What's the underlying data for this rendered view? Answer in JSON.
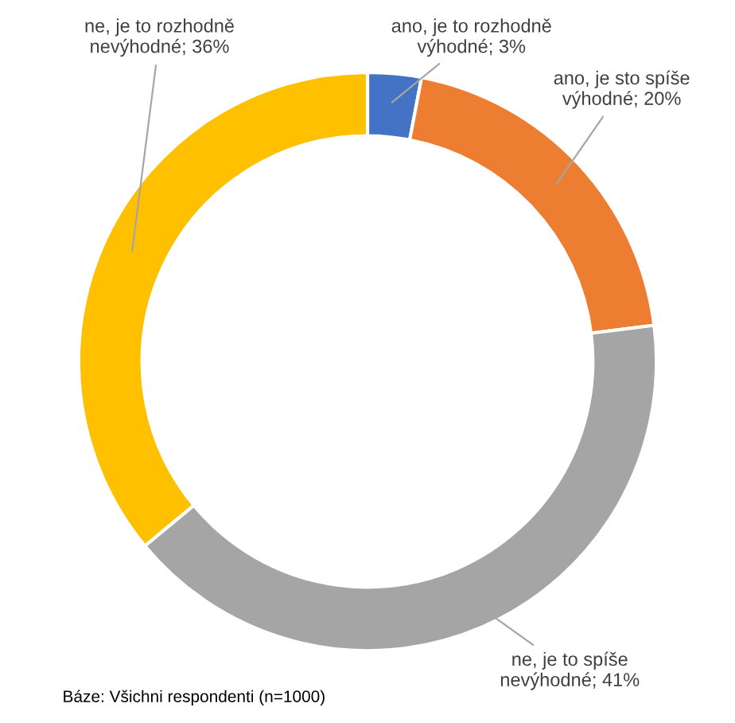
{
  "chart_data": {
    "type": "donut",
    "categories": [
      "ano, je to rozhodně výhodné",
      "ano, je sto spíše výhodné",
      "ne, je to spíše nevýhodné",
      "ne, je to rozhodně nevýhodné"
    ],
    "values": [
      3,
      20,
      41,
      36
    ],
    "value_labels": [
      "3%",
      "20%",
      "41%",
      "36%"
    ],
    "colors": [
      "#4472c4",
      "#ed7d31",
      "#a5a5a5",
      "#ffc000"
    ],
    "annotations": [
      "Báze: Všichni respondenti (n=1000)"
    ]
  }
}
